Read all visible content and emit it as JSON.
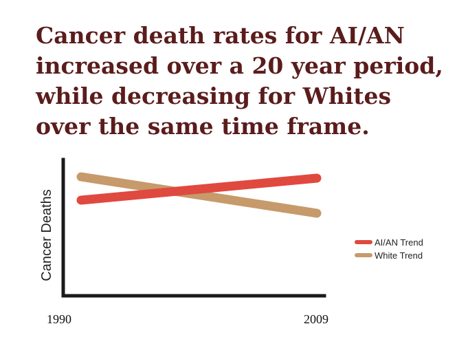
{
  "chart_data": {
    "type": "line",
    "title": "Cancer death rates for AI/AN increased over a 20 year period, while decreasing for Whites over the same time frame.",
    "xlabel": "",
    "ylabel": "Cancer Deaths",
    "x": [
      "1990",
      "2009"
    ],
    "grid": false,
    "y_ticks_shown": false,
    "legend_position": "right",
    "series": [
      {
        "name": "AI/AN Trend",
        "color": "#e0493f",
        "trend": "increasing"
      },
      {
        "name": "White Trend",
        "color": "#c69a6a",
        "trend": "decreasing"
      }
    ]
  },
  "colors": {
    "title": "#5b1c1c",
    "axis": "#1a1a1a"
  }
}
